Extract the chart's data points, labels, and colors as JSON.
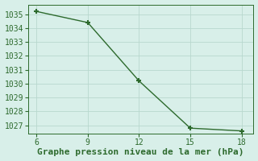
{
  "x": [
    6,
    9,
    12,
    15,
    18
  ],
  "y": [
    1035.2,
    1034.4,
    1030.2,
    1026.8,
    1026.6
  ],
  "line_color": "#2d6a2d",
  "marker_color": "#2d6a2d",
  "bg_color": "#d8efe9",
  "grid_color": "#b8d8ce",
  "xlabel": "Graphe pression niveau de la mer (hPa)",
  "ylim_min": 1026.4,
  "ylim_max": 1035.7,
  "xticks": [
    6,
    9,
    12,
    15,
    18
  ],
  "yticks": [
    1027,
    1028,
    1029,
    1030,
    1031,
    1032,
    1033,
    1034,
    1035
  ],
  "title_fontsize": 8,
  "tick_fontsize": 7,
  "line_width": 1.0,
  "marker_size": 5
}
